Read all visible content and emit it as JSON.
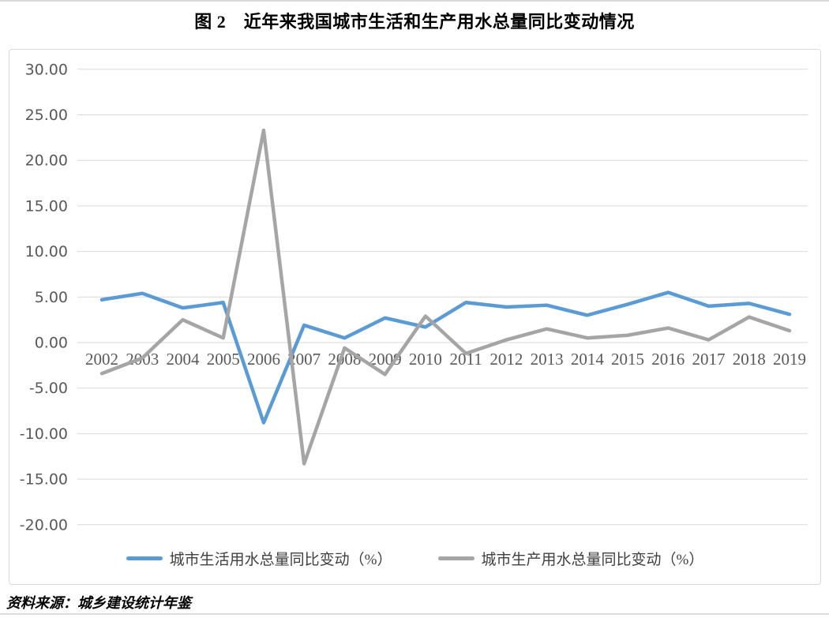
{
  "page": {
    "title": "图 2　近年来我国城市生活和生产用水总量同比变动情况",
    "source_note": "资料来源：城乡建设统计年鉴"
  },
  "chart_data": {
    "type": "line",
    "title": "图 2　近年来我国城市生活和生产用水总量同比变动情况",
    "categories": [
      "2002",
      "2003",
      "2004",
      "2005",
      "2006",
      "2007",
      "2008",
      "2009",
      "2010",
      "2011",
      "2012",
      "2013",
      "2014",
      "2015",
      "2016",
      "2017",
      "2018",
      "2019"
    ],
    "series": [
      {
        "name": "城市生活用水总量同比变动（%）",
        "color": "#5B9BD5",
        "values": [
          4.7,
          5.4,
          3.8,
          4.4,
          -8.8,
          1.9,
          0.5,
          2.7,
          1.7,
          4.4,
          3.9,
          4.1,
          3.0,
          4.2,
          5.5,
          4.0,
          4.3,
          3.1
        ]
      },
      {
        "name": "城市生产用水总量同比变动（%）",
        "color": "#A5A5A5",
        "values": [
          -3.4,
          -1.7,
          2.5,
          0.5,
          23.3,
          -13.3,
          -0.6,
          -3.5,
          2.9,
          -1.2,
          0.3,
          1.5,
          0.5,
          0.8,
          1.6,
          0.3,
          2.8,
          1.3
        ]
      }
    ],
    "xlabel": "",
    "ylabel": "",
    "ylim": [
      -20,
      30
    ],
    "ytick_step": 5,
    "ytick_labels": [
      "30.00",
      "25.00",
      "20.00",
      "15.00",
      "10.00",
      "5.00",
      "0.00",
      "-5.00",
      "-10.00",
      "-15.00",
      "-20.00"
    ],
    "grid": true,
    "legend_position": "bottom",
    "gridline_color": "#D9D9D9",
    "tick_label_color": "#595959",
    "line_width": 4.5
  }
}
